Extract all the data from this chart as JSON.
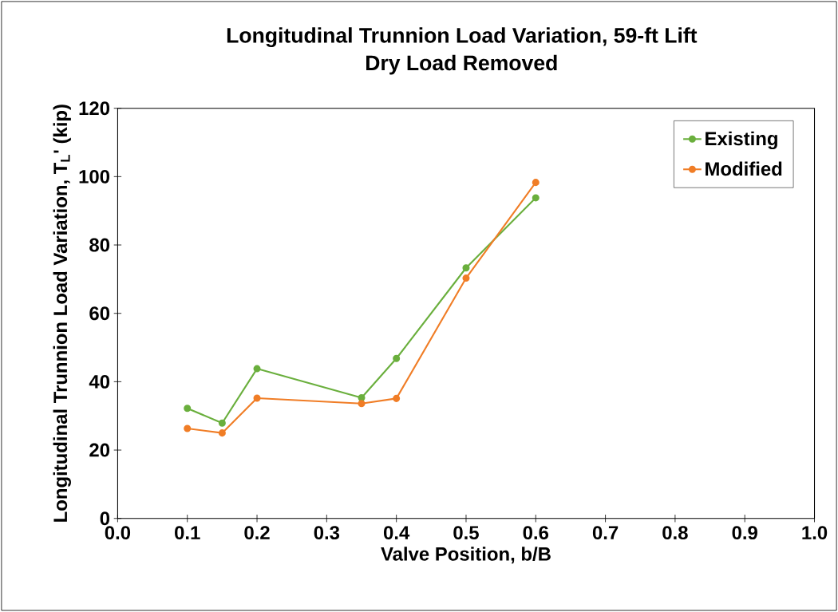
{
  "chart_data": {
    "type": "line",
    "title": "Longitudinal Trunnion Load Variation, 59-ft Lift",
    "subtitle": "Dry Load Removed",
    "xlabel": "Valve Position, b/B",
    "ylabel": "Longitudinal Trunnion Load Variation, T$_{L}$' (kip)",
    "x": [
      0.1,
      0.15,
      0.2,
      0.35,
      0.4,
      0.5,
      0.6
    ],
    "series": [
      {
        "name": "Existing",
        "color": "#6aaf3d",
        "values": [
          32.2,
          27.9,
          43.8,
          35.3,
          46.8,
          73.3,
          93.8
        ]
      },
      {
        "name": "Modified",
        "color": "#f07d26",
        "values": [
          26.3,
          25.0,
          35.2,
          33.6,
          35.1,
          70.3,
          98.3
        ]
      }
    ],
    "xlim": [
      0,
      1
    ],
    "ylim": [
      0,
      120
    ],
    "xticks": [
      {
        "value": 0,
        "label": "0.0"
      },
      {
        "value": 0.1,
        "label": "0.1"
      },
      {
        "value": 0.2,
        "label": "0.2"
      },
      {
        "value": 0.3,
        "label": "0.3"
      },
      {
        "value": 0.4,
        "label": "0.4"
      },
      {
        "value": 0.5,
        "label": "0.5"
      },
      {
        "value": 0.6,
        "label": "0.6"
      },
      {
        "value": 0.7,
        "label": "0.7"
      },
      {
        "value": 0.8,
        "label": "0.8"
      },
      {
        "value": 0.9,
        "label": "0.9"
      },
      {
        "value": 1,
        "label": "1.0"
      }
    ],
    "yticks": [
      0,
      20,
      40,
      60,
      80,
      100,
      120
    ],
    "legend": "top right",
    "marker": "circle",
    "line_style": "solid",
    "grid": false
  }
}
